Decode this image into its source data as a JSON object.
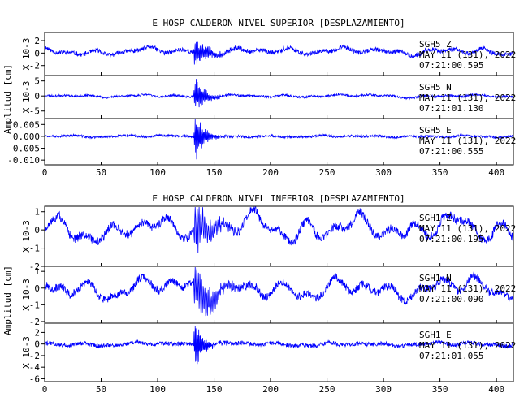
{
  "chart_data": [
    {
      "type": "line",
      "title": "E HOSP CALDERON NIVEL SUPERIOR [DESPLAZAMIENTO]",
      "ylabel": "Amplitud [cm]",
      "xlim": [
        0,
        415
      ],
      "xticks": [
        0,
        50,
        100,
        150,
        200,
        250,
        300,
        350,
        400
      ],
      "line_color": "#0000ff",
      "panels": [
        {
          "scale_label": "X 10-3",
          "ylim": [
            -3.6,
            3.3
          ],
          "yticks": [
            {
              "v": -2,
              "t": "-2"
            },
            {
              "v": 0,
              "t": "0"
            },
            {
              "v": 2,
              "t": "2"
            }
          ],
          "annotation": [
            "SGH5  Z",
            "MAY 11 (131), 2022",
            "07:21:00.595"
          ],
          "signal": {
            "seed": 11,
            "offset": 0.25,
            "noise": 0.35,
            "walk": 0.55,
            "event_amp": 2.3,
            "event_t": 133,
            "event_decay": 10,
            "event_freq": 0.9
          }
        },
        {
          "scale_label": "X 10-3",
          "ylim": [
            -7.5,
            6.8
          ],
          "yticks": [
            {
              "v": -5,
              "t": "-5"
            },
            {
              "v": 0,
              "t": "0"
            },
            {
              "v": 5,
              "t": "5"
            }
          ],
          "annotation": [
            "SGH5  N",
            "MAY 11 (131), 2022",
            "07:21:01.130"
          ],
          "signal": {
            "seed": 23,
            "offset": 0.0,
            "noise": 0.35,
            "walk": 0.45,
            "event_amp": 5.0,
            "event_t": 133,
            "event_decay": 9,
            "event_freq": 1.0
          }
        },
        {
          "scale_label": "",
          "ylim": [
            -0.012,
            0.0075
          ],
          "yticks": [
            {
              "v": 0.005,
              "t": "0.005"
            },
            {
              "v": 0.0,
              "t": "0.000"
            },
            {
              "v": -0.005,
              "t": "-0.005"
            },
            {
              "v": -0.01,
              "t": "-0.010"
            }
          ],
          "annotation": [
            "SGH5  E",
            "MAY 11 (131), 2022",
            "07:21:00.555"
          ],
          "signal": {
            "seed": 37,
            "offset": 0.0,
            "noise": 0.0005,
            "walk": 0.0004,
            "event_amp": 0.008,
            "event_t": 133,
            "event_decay": 8,
            "event_freq": 1.1
          }
        }
      ]
    },
    {
      "type": "line",
      "title": "E HOSP CALDERON NIVEL INFERIOR [DESPLAZAMIENTO]",
      "ylabel": "Amplitud [cm]",
      "xlim": [
        0,
        415
      ],
      "xticks": [
        0,
        50,
        100,
        150,
        200,
        250,
        300,
        350,
        400
      ],
      "line_color": "#0000ff",
      "panels": [
        {
          "scale_label": "X 10-3",
          "ylim": [
            -2.0,
            1.3
          ],
          "yticks": [
            {
              "v": 1,
              "t": "1"
            },
            {
              "v": 0,
              "t": "0"
            },
            {
              "v": -1,
              "t": "-1"
            },
            {
              "v": -2,
              "t": "-2"
            }
          ],
          "annotation": [
            "SGH1  Z",
            "MAY 11 (131), 2022",
            "07:21:00.195"
          ],
          "signal": {
            "seed": 51,
            "offset": 0.1,
            "noise": 0.22,
            "walk": 0.7,
            "event_amp": 1.3,
            "event_t": 133,
            "event_decay": 14,
            "event_freq": 0.6
          }
        },
        {
          "scale_label": "X 10-3",
          "ylim": [
            -2.1,
            1.3
          ],
          "yticks": [
            {
              "v": 1,
              "t": "1"
            },
            {
              "v": 0,
              "t": "0"
            },
            {
              "v": -1,
              "t": "-1"
            },
            {
              "v": -2,
              "t": "-2"
            }
          ],
          "annotation": [
            "SGH1  N",
            "MAY 11 (131), 2022",
            "07:21:00.090"
          ],
          "signal": {
            "seed": 67,
            "offset": 0.0,
            "noise": 0.22,
            "walk": 0.65,
            "event_amp": 1.6,
            "event_t": 133,
            "event_decay": 15,
            "event_freq": 0.7
          }
        },
        {
          "scale_label": "X 10-3",
          "ylim": [
            -6.5,
            3.6
          ],
          "yticks": [
            {
              "v": 2,
              "t": "2"
            },
            {
              "v": 0,
              "t": "0"
            },
            {
              "v": -2,
              "t": "-2"
            },
            {
              "v": -4,
              "t": "-4"
            },
            {
              "v": -6,
              "t": "-6"
            }
          ],
          "annotation": [
            "SGH1  E",
            "MAY 11 (131), 2022",
            "07:21:01.055"
          ],
          "signal": {
            "seed": 79,
            "offset": 0.0,
            "noise": 0.35,
            "walk": 0.3,
            "event_amp": 4.5,
            "event_t": 133,
            "event_decay": 6,
            "event_freq": 1.2
          }
        }
      ]
    }
  ]
}
